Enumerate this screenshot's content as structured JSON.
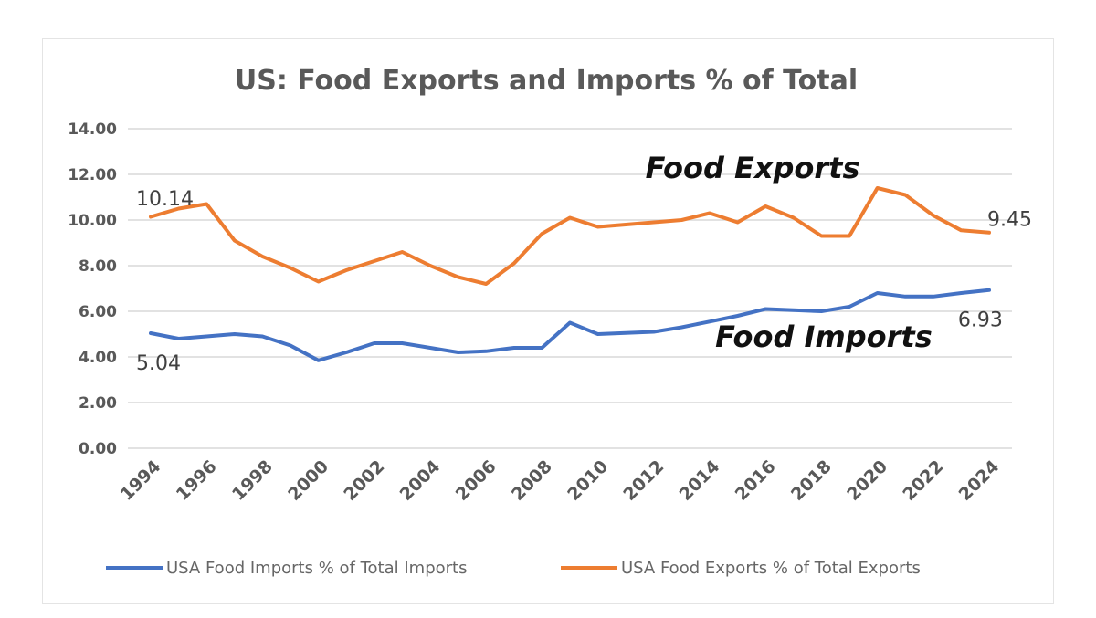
{
  "chart_data": {
    "type": "line",
    "title": "US: Food Exports and Imports % of Total",
    "xlabel": "",
    "ylabel": "",
    "ylim": [
      0,
      14
    ],
    "yticks": [
      "0.00",
      "2.00",
      "4.00",
      "6.00",
      "8.00",
      "10.00",
      "12.00",
      "14.00"
    ],
    "xticks": [
      "1994",
      "1996",
      "1998",
      "2000",
      "2002",
      "2004",
      "2006",
      "2008",
      "2010",
      "2012",
      "2014",
      "2016",
      "2018",
      "2020",
      "2022",
      "2024"
    ],
    "x": [
      1994,
      1995,
      1996,
      1997,
      1998,
      1999,
      2000,
      2001,
      2002,
      2003,
      2004,
      2005,
      2006,
      2007,
      2008,
      2009,
      2010,
      2011,
      2012,
      2013,
      2014,
      2015,
      2016,
      2017,
      2018,
      2019,
      2020,
      2021,
      2022,
      2023,
      2024
    ],
    "grid": true,
    "legend_position": "bottom",
    "series": [
      {
        "name": "USA Food Imports % of Total Imports",
        "color": "#4472c4",
        "values": [
          5.04,
          4.8,
          4.9,
          5.0,
          4.9,
          4.5,
          3.85,
          4.2,
          4.6,
          4.6,
          4.4,
          4.2,
          4.25,
          4.4,
          4.4,
          5.5,
          5.0,
          5.05,
          5.1,
          5.3,
          5.55,
          5.8,
          6.1,
          6.05,
          6.0,
          6.2,
          6.8,
          6.65,
          6.65,
          6.8,
          6.93
        ]
      },
      {
        "name": "USA Food Exports % of Total Exports",
        "color": "#ed7d31",
        "values": [
          10.14,
          10.5,
          10.7,
          9.1,
          8.4,
          7.9,
          7.3,
          7.8,
          8.2,
          8.6,
          8.0,
          7.5,
          7.2,
          8.1,
          9.4,
          10.1,
          9.7,
          9.8,
          9.9,
          10.0,
          10.3,
          9.9,
          10.6,
          10.1,
          9.3,
          9.3,
          11.4,
          11.1,
          10.2,
          9.55,
          9.45
        ]
      }
    ],
    "annotations": [
      {
        "text": "Food Exports",
        "x": 2011.7,
        "y": 11.85
      },
      {
        "text": "Food Imports",
        "x": 2014.2,
        "y": 4.45
      }
    ],
    "data_labels": [
      {
        "text": "10.14",
        "x": 1994.0,
        "y": 10.65
      },
      {
        "text": "9.45",
        "x": 2024.0,
        "y": 9.75
      },
      {
        "text": "5.04",
        "x": 1994.0,
        "y": 3.45
      },
      {
        "text": "6.93",
        "x": 2023.8,
        "y": 5.35
      }
    ]
  }
}
